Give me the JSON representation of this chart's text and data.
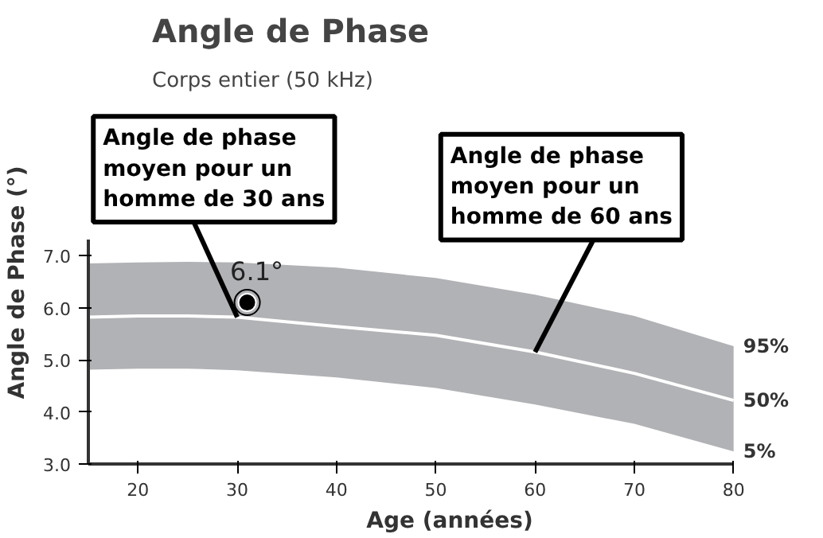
{
  "chart_data": {
    "type": "line",
    "title": "Angle de Phase",
    "subtitle": "Corps entier (50 kHz)",
    "xlabel": "Age (années)",
    "ylabel": "Angle de Phase (°)",
    "xlim": [
      15,
      80
    ],
    "xticks": [
      20,
      30,
      40,
      50,
      60,
      70,
      80
    ],
    "ylim": [
      3.0,
      7.3
    ],
    "yticks": [
      {
        "value": 3,
        "label": "3.0"
      },
      {
        "value": 4,
        "label": "4.0"
      },
      {
        "value": 5,
        "label": "5.0"
      },
      {
        "value": 6,
        "label": "6.0"
      },
      {
        "value": 7,
        "label": "7.0"
      }
    ],
    "series": [
      {
        "name": "50%",
        "color": "#ffffff",
        "x": [
          15,
          20,
          25,
          30,
          40,
          50,
          60,
          70,
          80
        ],
        "values": [
          5.82,
          5.84,
          5.84,
          5.82,
          5.64,
          5.47,
          5.15,
          4.74,
          4.22
        ],
        "lower": [
          4.81,
          4.83,
          4.83,
          4.8,
          4.66,
          4.46,
          4.14,
          3.77,
          3.24
        ],
        "upper": [
          6.85,
          6.87,
          6.88,
          6.87,
          6.77,
          6.57,
          6.25,
          5.84,
          5.26
        ]
      },
      {
        "type": "scatter",
        "color": "#000000",
        "marker": "circle",
        "x": [
          31
        ],
        "values": [
          6.1
        ],
        "value_labels": [
          "6.1°"
        ]
      }
    ],
    "annotations": [
      {
        "text": "95%",
        "x": 80,
        "y": 5.26
      },
      {
        "text": "5%",
        "x": 80,
        "y": 3.24
      },
      {
        "text": "Angle de phase\nmoyen pour un\nhomme de 30 ans",
        "x": 30,
        "y": 5.82
      },
      {
        "text": "Angle de phase\nmoyen pour un\nhomme de 60 ans",
        "x": 60,
        "y": 5.15
      }
    ]
  }
}
